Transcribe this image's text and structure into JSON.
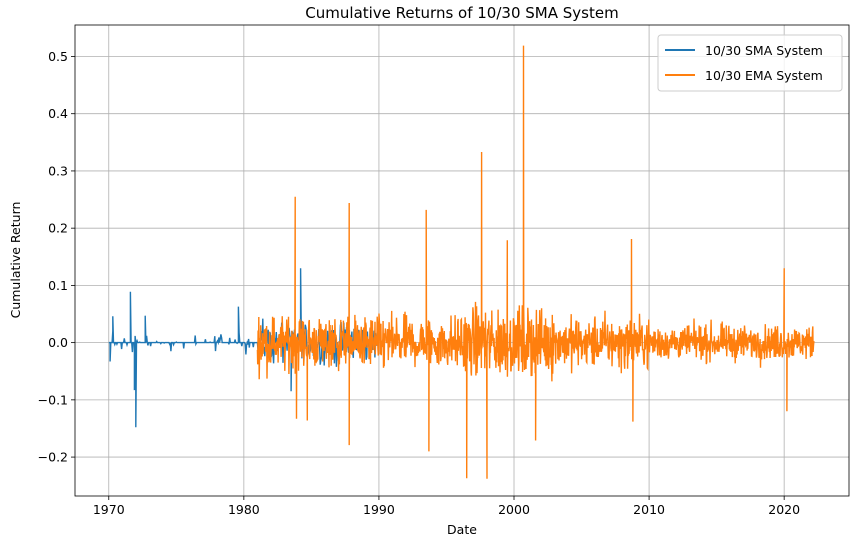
{
  "chart_data": {
    "type": "line",
    "title": "Cumulative Returns of 10/30 SMA System",
    "xlabel": "Date",
    "ylabel": "Cumulative Return",
    "xlim": [
      1967.5,
      2024.8
    ],
    "ylim": [
      -0.268,
      0.555
    ],
    "x_ticks": [
      1970,
      1980,
      1990,
      2000,
      2010,
      2020
    ],
    "x_tick_labels": [
      "1970",
      "1980",
      "1990",
      "2000",
      "2010",
      "2020"
    ],
    "y_ticks": [
      -0.2,
      -0.1,
      0.0,
      0.1,
      0.2,
      0.3,
      0.4,
      0.5
    ],
    "y_tick_labels": [
      "−0.2",
      "−0.1",
      "0.0",
      "0.1",
      "0.2",
      "0.3",
      "0.4",
      "0.5"
    ],
    "grid": true,
    "legend_position": "top-right",
    "series": [
      {
        "name": "10/30 SMA System",
        "color": "#1f77b4",
        "x_range": [
          1970.0,
          1990.0
        ],
        "peaks": [
          [
            1970.1,
            -0.033
          ],
          [
            1970.3,
            0.046
          ],
          [
            1971.6,
            0.089
          ],
          [
            1971.9,
            -0.083
          ],
          [
            1972.0,
            -0.148
          ],
          [
            1972.7,
            0.047
          ],
          [
            1979.6,
            0.063
          ],
          [
            1983.5,
            -0.085
          ],
          [
            1984.2,
            0.13
          ]
        ]
      },
      {
        "name": "10/30 EMA System",
        "color": "#ff7f0e",
        "x_range": [
          1981.0,
          2022.2
        ],
        "peaks": [
          [
            1983.8,
            0.255
          ],
          [
            1983.9,
            -0.133
          ],
          [
            1984.7,
            -0.136
          ],
          [
            1987.8,
            0.244
          ],
          [
            1987.8,
            -0.179
          ],
          [
            1993.5,
            0.232
          ],
          [
            1993.7,
            -0.19
          ],
          [
            1996.5,
            -0.237
          ],
          [
            1997.6,
            0.333
          ],
          [
            1998.0,
            -0.238
          ],
          [
            1999.5,
            0.179
          ],
          [
            2000.7,
            0.519
          ],
          [
            2001.6,
            -0.171
          ],
          [
            2008.7,
            0.181
          ],
          [
            2008.8,
            -0.138
          ],
          [
            2020.0,
            0.13
          ],
          [
            2020.2,
            -0.12
          ]
        ]
      }
    ]
  }
}
